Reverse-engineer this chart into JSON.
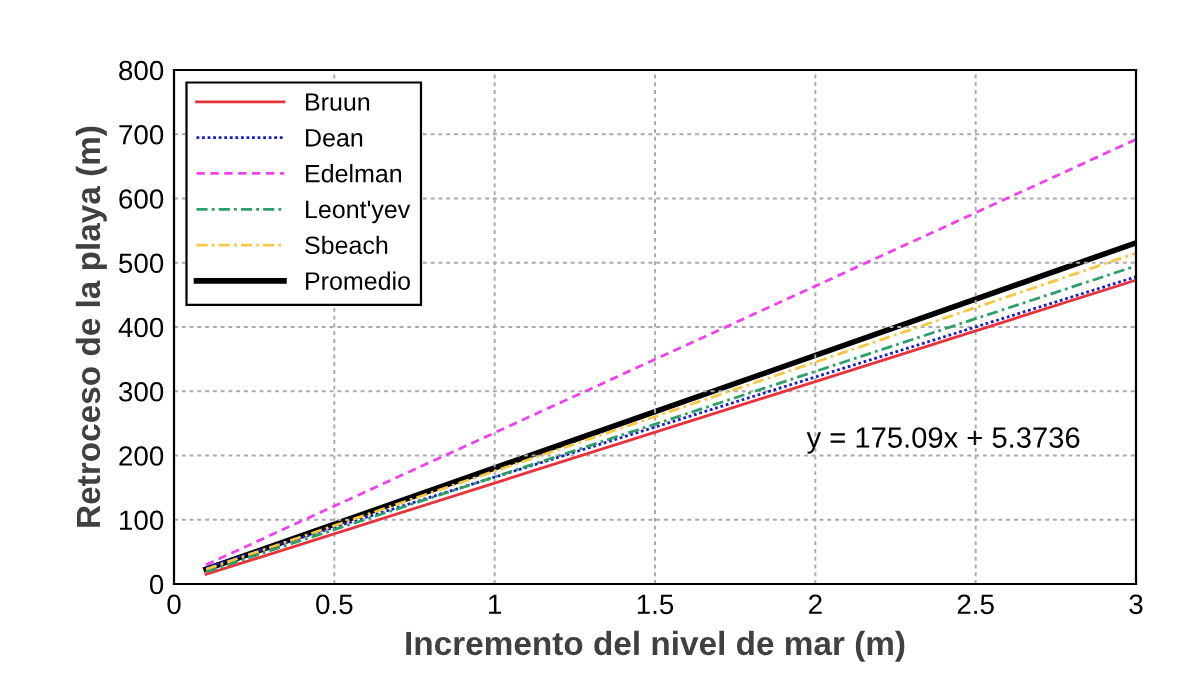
{
  "chart_data": {
    "type": "line",
    "xlabel": "Incremento del nivel de mar (m)",
    "ylabel": "Retroceso de la playa (m)",
    "x": [
      0.1,
      3
    ],
    "series": [
      {
        "name": "Bruun",
        "color": "#e8323c",
        "line_style": "solid",
        "values": [
          15,
          473
        ]
      },
      {
        "name": "Dean",
        "color": "#1a1acc",
        "line_style": "dotted",
        "values": [
          26,
          478
        ]
      },
      {
        "name": "Edelman",
        "color": "#f040f0",
        "line_style": "dashed",
        "values": [
          30,
          692
        ]
      },
      {
        "name": "Leont'yev",
        "color": "#2ca068",
        "line_style": "dashdot",
        "values": [
          19,
          495
        ]
      },
      {
        "name": "Sbeach",
        "color": "#f5c842",
        "line_style": "dashdot",
        "values": [
          23,
          515
        ]
      },
      {
        "name": "Promedio",
        "color": "#000000",
        "line_style": "solid",
        "values": [
          23,
          531
        ]
      }
    ],
    "annotations": [
      "y = 175.09x + 5.3736"
    ],
    "xlim": [
      0,
      3
    ],
    "xticks": [
      0,
      0.5,
      1,
      1.5,
      2,
      2.5,
      3
    ],
    "ylim": [
      0,
      800
    ],
    "yticks": [
      0,
      100,
      200,
      300,
      400,
      500,
      600,
      700,
      800
    ],
    "grid": true,
    "legend": "top left",
    "marker": "none"
  }
}
